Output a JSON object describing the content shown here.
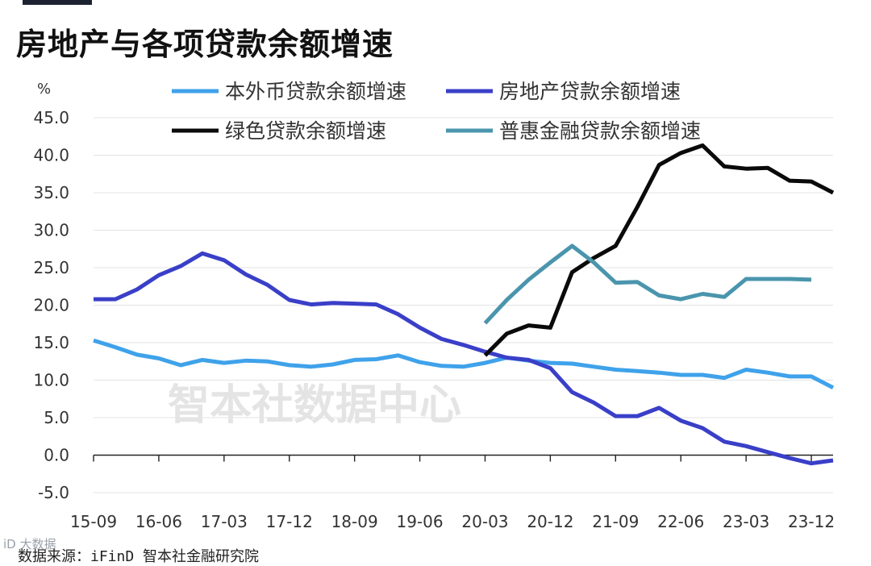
{
  "title": "房地产与各项贷款余额增速",
  "source": "数据来源：iFinD 智本社金融研究院",
  "watermark": "智本社数据中心",
  "corner_mark": "iD 大数据",
  "chart_data": {
    "type": "line",
    "title": "房地产与各项贷款余额增速",
    "ylabel": "%",
    "ylim": [
      -5,
      45
    ],
    "yticks": [
      -5,
      0,
      5,
      10,
      15,
      20,
      25,
      30,
      35,
      40,
      45
    ],
    "ytick_labels": [
      "-5.0",
      "0.0",
      "5.0",
      "10.0",
      "15.0",
      "20.0",
      "25.0",
      "30.0",
      "35.0",
      "40.0",
      "45.0"
    ],
    "x_tick_labels": [
      "15-09",
      "16-06",
      "17-03",
      "17-12",
      "18-09",
      "19-06",
      "20-03",
      "20-12",
      "21-09",
      "22-06",
      "23-03",
      "23-12"
    ],
    "x_tick_index": [
      0,
      3,
      6,
      9,
      12,
      15,
      18,
      21,
      24,
      27,
      30,
      33
    ],
    "x_count": 35,
    "series": [
      {
        "name": "本外币贷款余额增速",
        "color": "#3fa2ea",
        "start": 0,
        "values": [
          15.3,
          14.4,
          13.4,
          12.9,
          12.0,
          12.7,
          12.3,
          12.6,
          12.5,
          12.0,
          11.8,
          12.1,
          12.7,
          12.8,
          13.3,
          12.4,
          11.9,
          11.8,
          12.3,
          13.0,
          12.6,
          12.3,
          12.2,
          11.8,
          11.4,
          11.2,
          11.0,
          10.7,
          10.7,
          10.3,
          11.4,
          11.0,
          10.5,
          10.5,
          9.0
        ]
      },
      {
        "name": "房地产贷款余额增速",
        "color": "#3a3fc8",
        "start": 0,
        "values": [
          20.8,
          20.8,
          22.1,
          24.0,
          25.2,
          26.9,
          26.0,
          24.1,
          22.7,
          20.7,
          20.1,
          20.3,
          20.2,
          20.1,
          18.8,
          17.0,
          15.5,
          14.7,
          13.8,
          13.0,
          12.7,
          11.6,
          8.4,
          7.0,
          5.2,
          5.2,
          6.3,
          4.6,
          3.6,
          1.8,
          1.2,
          0.4,
          -0.4,
          -1.1,
          -0.7
        ]
      },
      {
        "name": "绿色贷款余额增速",
        "color": "#0a0a0a",
        "start": 18,
        "values": [
          13.3,
          16.2,
          17.3,
          17.0,
          24.4,
          26.3,
          27.9,
          33.1,
          38.7,
          40.3,
          41.3,
          38.5,
          38.2,
          38.3,
          36.6,
          36.5,
          35.0
        ]
      },
      {
        "name": "普惠金融贷款余额增速",
        "color": "#4a95ad",
        "start": 18,
        "values": [
          17.6,
          20.7,
          23.4,
          25.7,
          27.9,
          25.7,
          23.0,
          23.1,
          21.3,
          20.8,
          21.5,
          21.1,
          23.5,
          23.5,
          23.5,
          23.4
        ]
      }
    ],
    "legend": {
      "position": "top"
    },
    "grid": "horizontal"
  }
}
